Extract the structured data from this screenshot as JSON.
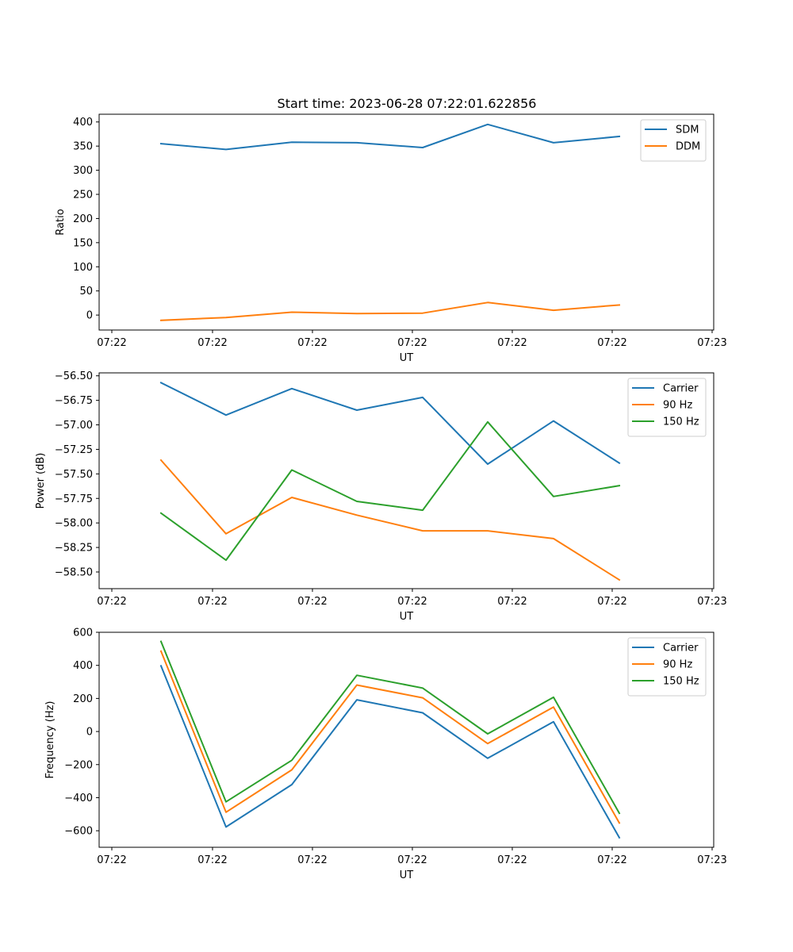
{
  "figure": {
    "title": "Start time: 2023-06-28 07:22:01.622856"
  },
  "colors": {
    "blue": "#1f77b4",
    "orange": "#ff7f0e",
    "green": "#2ca02c"
  },
  "chart_data": [
    {
      "type": "line",
      "title": "Start time: 2023-06-28 07:22:01.622856",
      "xlabel": "UT",
      "ylabel": "Ratio",
      "x_tick_labels": [
        "07:22",
        "07:22",
        "07:22",
        "07:22",
        "07:22",
        "07:22",
        "07:23"
      ],
      "y_ticks": [
        0,
        50,
        100,
        150,
        200,
        250,
        300,
        350,
        400
      ],
      "ylim": [
        -31,
        416
      ],
      "legend_position": "upper right",
      "series": [
        {
          "name": "SDM",
          "color": "#1f77b4",
          "values": [
            355,
            343,
            358,
            357,
            347,
            395,
            357,
            370
          ]
        },
        {
          "name": "DDM",
          "color": "#ff7f0e",
          "values": [
            -11,
            -5,
            6,
            3,
            4,
            26,
            10,
            21
          ]
        }
      ]
    },
    {
      "type": "line",
      "title": "",
      "xlabel": "UT",
      "ylabel": "Power (dB)",
      "x_tick_labels": [
        "07:22",
        "07:22",
        "07:22",
        "07:22",
        "07:22",
        "07:22",
        "07:23"
      ],
      "y_ticks": [
        -56.5,
        -56.75,
        -57.0,
        -57.25,
        -57.5,
        -57.75,
        -58.0,
        -58.25,
        -58.5
      ],
      "y_tick_labels": [
        "−56.50",
        "−56.75",
        "−57.00",
        "−57.25",
        "−57.50",
        "−57.75",
        "−58.00",
        "−58.25",
        "−58.50"
      ],
      "ylim": [
        -58.67,
        -56.47
      ],
      "legend_position": "upper right",
      "series": [
        {
          "name": "Carrier",
          "color": "#1f77b4",
          "values": [
            -56.57,
            -56.9,
            -56.63,
            -56.85,
            -56.72,
            -57.4,
            -56.96,
            -57.39
          ]
        },
        {
          "name": "90 Hz",
          "color": "#ff7f0e",
          "values": [
            -57.36,
            -58.11,
            -57.74,
            -57.92,
            -58.08,
            -58.08,
            -58.16,
            -58.58
          ]
        },
        {
          "name": "150 Hz",
          "color": "#2ca02c",
          "values": [
            -57.9,
            -58.38,
            -57.46,
            -57.78,
            -57.87,
            -56.97,
            -57.73,
            -57.62
          ]
        }
      ]
    },
    {
      "type": "line",
      "title": "",
      "xlabel": "UT",
      "ylabel": "Frequency (Hz)",
      "x_tick_labels": [
        "07:22",
        "07:22",
        "07:22",
        "07:22",
        "07:22",
        "07:22",
        "07:23"
      ],
      "y_ticks": [
        -600,
        -400,
        -200,
        0,
        200,
        400,
        600
      ],
      "y_tick_labels": [
        "−600",
        "−400",
        "−200",
        "0",
        "200",
        "400",
        "600"
      ],
      "ylim": [
        -700,
        600
      ],
      "legend_position": "upper right",
      "series": [
        {
          "name": "Carrier",
          "color": "#1f77b4",
          "values": [
            397,
            -577,
            -321,
            192,
            113,
            -162,
            59,
            -642
          ]
        },
        {
          "name": "90 Hz",
          "color": "#ff7f0e",
          "values": [
            486,
            -488,
            -232,
            281,
            204,
            -73,
            148,
            -553
          ]
        },
        {
          "name": "150 Hz",
          "color": "#2ca02c",
          "values": [
            545,
            -425,
            -174,
            340,
            263,
            -14,
            207,
            -494
          ]
        }
      ]
    }
  ]
}
